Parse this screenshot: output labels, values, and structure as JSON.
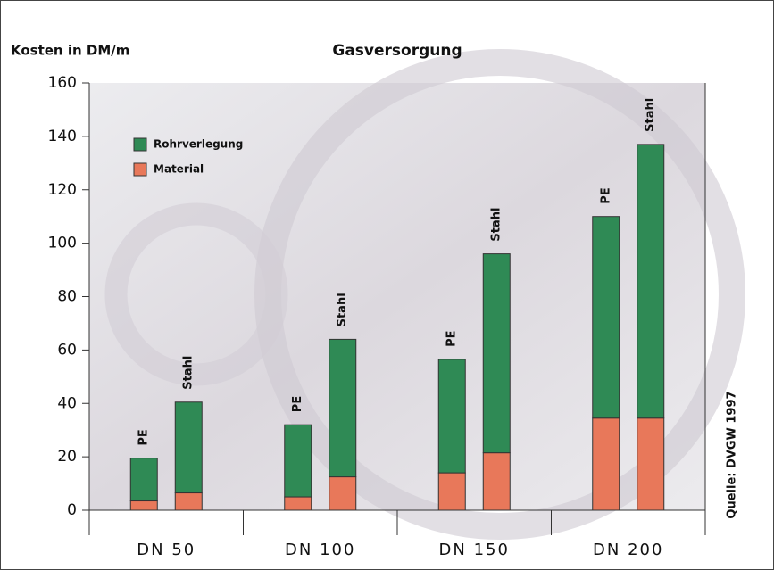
{
  "chart_data": {
    "type": "grouped-stacked-bar",
    "title": "Gasversorgung",
    "y_label": "Kosten in DM/m",
    "source": "Quelle: DVGW 1997",
    "categories": [
      "DN 50",
      "DN 100",
      "DN 150",
      "DN 200"
    ],
    "groups": [
      "PE",
      "Stahl"
    ],
    "series": [
      {
        "name": "Material",
        "color": "#e8785a",
        "values": [
          [
            3.5,
            6.5
          ],
          [
            5,
            12.5
          ],
          [
            14,
            21.5
          ],
          [
            34.5,
            34.5
          ]
        ]
      },
      {
        "name": "Rohrverlegung",
        "color": "#2f8a55",
        "values": [
          [
            16,
            34
          ],
          [
            27,
            51.5
          ],
          [
            42.5,
            74.5
          ],
          [
            75.5,
            102.5
          ]
        ]
      }
    ],
    "ylim": [
      0,
      160
    ],
    "yticks": [
      0,
      20,
      40,
      60,
      80,
      100,
      120,
      140,
      160
    ],
    "grid": false
  }
}
